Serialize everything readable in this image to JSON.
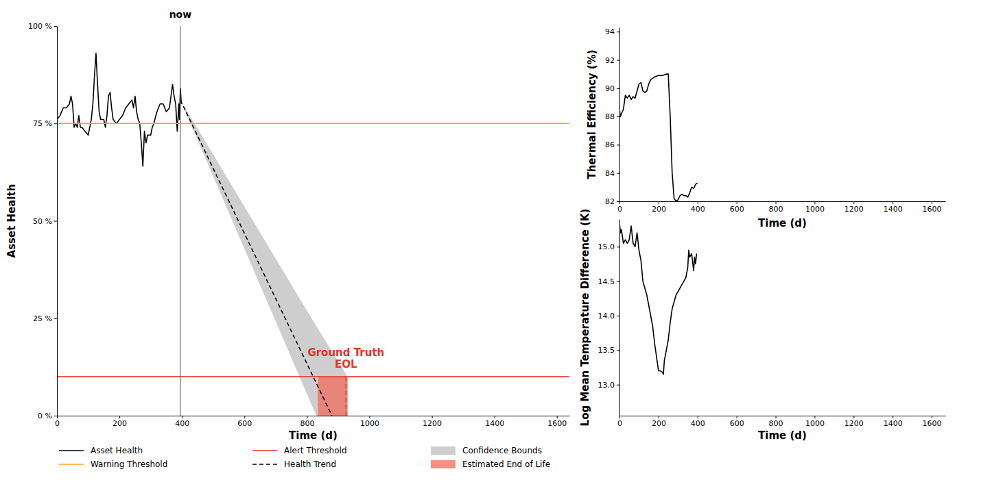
{
  "chart_data": [
    {
      "type": "line",
      "x_label": "Time (d)",
      "y_label": "Asset Health",
      "xlim": [
        0,
        1640
      ],
      "xticks": [
        0,
        200,
        400,
        600,
        800,
        1000,
        1200,
        1400,
        1600
      ],
      "ylim": [
        0,
        100
      ],
      "yticks": [
        {
          "value": 0,
          "label": "0 %"
        },
        {
          "value": 25,
          "label": "25 %"
        },
        {
          "value": 50,
          "label": "50 %"
        },
        {
          "value": 75,
          "label": "75 %"
        },
        {
          "value": 100,
          "label": "100 %"
        }
      ],
      "legend": "bottom",
      "annotations": [
        {
          "text": "now",
          "x": 395,
          "line_style": "solid"
        },
        {
          "text": "Ground Truth\nEOL",
          "x": 925,
          "y": 10,
          "color": "#e8322a",
          "line_style": "dashed"
        }
      ],
      "series": [
        {
          "name": "Asset Health",
          "type": "line",
          "color": "#000000",
          "x": [
            0,
            10,
            20,
            30,
            40,
            45,
            50,
            55,
            60,
            65,
            70,
            75,
            80,
            90,
            100,
            105,
            110,
            115,
            120,
            125,
            130,
            135,
            140,
            150,
            155,
            160,
            165,
            170,
            175,
            180,
            190,
            200,
            210,
            220,
            230,
            240,
            245,
            250,
            255,
            260,
            265,
            270,
            275,
            280,
            285,
            290,
            300,
            305,
            310,
            320,
            330,
            340,
            350,
            360,
            365,
            370,
            375,
            380,
            385,
            390,
            392,
            395,
            398
          ],
          "values": [
            76,
            77,
            79,
            79,
            80,
            82,
            80,
            74,
            75,
            74,
            77,
            74,
            74,
            73,
            72,
            74,
            76,
            80,
            87,
            93,
            85,
            78,
            76,
            76,
            74,
            77,
            82,
            83,
            79,
            76,
            75,
            76,
            77,
            79,
            80,
            81,
            79,
            82,
            78,
            76,
            75,
            70,
            64,
            73,
            70,
            72,
            72,
            74,
            75,
            78,
            80,
            80,
            78,
            79,
            82,
            85,
            82,
            80,
            73,
            80,
            76,
            84,
            80
          ]
        },
        {
          "name": "Warning Threshold",
          "type": "line",
          "color": "#f5a623",
          "x": [
            0,
            1640
          ],
          "values": [
            75,
            75
          ]
        },
        {
          "name": "Alert Threshold",
          "type": "line",
          "color": "#e8322a",
          "x": [
            0,
            1640
          ],
          "values": [
            10,
            10
          ]
        },
        {
          "name": "Health Trend",
          "type": "line",
          "color": "#000000",
          "line_style": "dashed",
          "x": [
            395,
            880
          ],
          "values": [
            81,
            0
          ]
        },
        {
          "name": "Confidence Bounds",
          "type": "area",
          "color": "#bdbdbd",
          "x": [
            395,
            830,
            930
          ],
          "lower": [
            81,
            0,
            0
          ],
          "upper": [
            81,
            23,
            10
          ]
        },
        {
          "name": "Estimated End of Life",
          "type": "area",
          "color": "#f26b5b",
          "x": [
            835,
            930
          ],
          "lower": [
            0,
            0
          ],
          "upper": [
            10,
            10
          ]
        }
      ]
    },
    {
      "type": "line",
      "x_label": "Time (d)",
      "y_label": "Thermal Efficiency (%)",
      "xlim": [
        0,
        1670
      ],
      "xticks": [
        0,
        200,
        400,
        600,
        800,
        1000,
        1200,
        1400,
        1600
      ],
      "ylim": [
        82,
        94.3
      ],
      "yticks": [
        82,
        84,
        86,
        88,
        90,
        92,
        94
      ],
      "x": [
        0,
        5,
        10,
        20,
        30,
        40,
        50,
        60,
        70,
        80,
        90,
        100,
        110,
        120,
        130,
        140,
        150,
        160,
        180,
        200,
        220,
        240,
        250,
        260,
        270,
        280,
        290,
        300,
        310,
        320,
        330,
        340,
        350,
        360,
        370,
        380,
        390,
        400
      ],
      "series": [
        {
          "color": "#000000",
          "values": [
            88.5,
            88.0,
            88.2,
            88.5,
            89.5,
            89.3,
            89.5,
            89.2,
            89.4,
            89.3,
            89.8,
            90.3,
            90.4,
            89.8,
            89.7,
            89.8,
            90.3,
            90.6,
            90.8,
            90.9,
            90.9,
            91.0,
            91.0,
            88.0,
            84.0,
            82.2,
            82.0,
            82.1,
            82.4,
            82.5,
            82.4,
            82.4,
            82.3,
            82.6,
            83.0,
            82.9,
            83.2,
            83.3
          ]
        }
      ]
    },
    {
      "type": "line",
      "x_label": "Time (d)",
      "y_label": "Log Mean Temperature Difference (K)",
      "xlim": [
        0,
        1670
      ],
      "xticks": [
        0,
        200,
        400,
        600,
        800,
        1000,
        1200,
        1400,
        1600
      ],
      "ylim": [
        12.55,
        15.4
      ],
      "yticks": [
        {
          "value": 13,
          "label": "13.0"
        },
        13.5,
        {
          "value": 14,
          "label": "14.0"
        },
        14.5,
        {
          "value": 15,
          "label": "15.0"
        }
      ],
      "x": [
        0,
        5,
        10,
        20,
        30,
        40,
        50,
        60,
        70,
        80,
        90,
        100,
        110,
        120,
        130,
        140,
        150,
        160,
        170,
        180,
        190,
        200,
        210,
        220,
        225,
        230,
        240,
        250,
        260,
        270,
        280,
        290,
        300,
        310,
        320,
        330,
        340,
        350,
        355,
        360,
        370,
        380,
        385,
        390,
        395
      ],
      "series": [
        {
          "color": "#000000",
          "values": [
            15.35,
            15.2,
            15.25,
            15.05,
            15.1,
            15.05,
            15.1,
            15.3,
            15.05,
            15.0,
            15.2,
            14.95,
            14.8,
            14.5,
            14.4,
            14.3,
            14.15,
            14.0,
            13.85,
            13.6,
            13.4,
            13.2,
            13.2,
            13.18,
            13.15,
            13.35,
            13.5,
            13.65,
            13.9,
            14.1,
            14.2,
            14.3,
            14.35,
            14.4,
            14.45,
            14.5,
            14.55,
            14.7,
            14.95,
            14.85,
            14.9,
            14.65,
            14.85,
            14.75,
            14.9
          ]
        }
      ]
    }
  ]
}
